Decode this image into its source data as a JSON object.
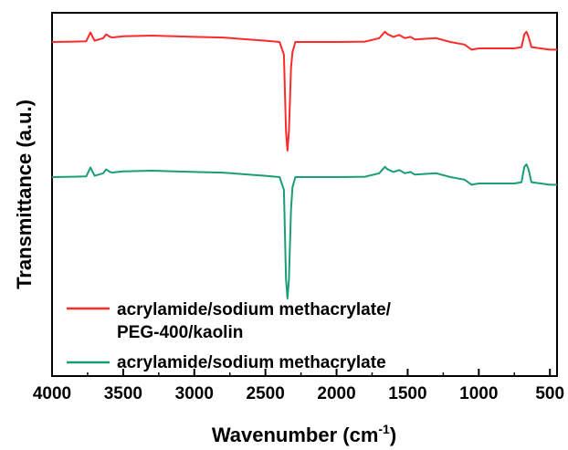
{
  "chart_data": {
    "type": "line",
    "xlabel": "Wavenumber (cm",
    "xlabel_sup": "-1",
    "xlabel_end": ")",
    "ylabel": "Transmittance (a.u.)",
    "xlim": [
      4000,
      450
    ],
    "x_reversed": true,
    "grid": false,
    "legend_placement": "bottom-left",
    "x_ticks": [
      4000,
      3500,
      3000,
      2500,
      2000,
      1500,
      1000,
      500
    ],
    "x_tick_labels": [
      "4000",
      "3500",
      "3000",
      "2500",
      "2000",
      "1500",
      "1000",
      "500"
    ],
    "series": [
      {
        "name_lines": [
          "acrylamide/sodium methacrylate/",
          "PEG-400/kaolin"
        ],
        "color": "#ff2a2a",
        "points": [
          [
            4000,
            0.0
          ],
          [
            3850,
            0.003
          ],
          [
            3760,
            0.006
          ],
          [
            3745,
            0.04
          ],
          [
            3730,
            0.075
          ],
          [
            3715,
            0.04
          ],
          [
            3700,
            0.01
          ],
          [
            3670,
            0.02
          ],
          [
            3640,
            0.03
          ],
          [
            3620,
            0.06
          ],
          [
            3600,
            0.045
          ],
          [
            3580,
            0.035
          ],
          [
            3500,
            0.045
          ],
          [
            3300,
            0.05
          ],
          [
            3000,
            0.04
          ],
          [
            2800,
            0.035
          ],
          [
            2500,
            0.01
          ],
          [
            2400,
            0.0
          ],
          [
            2370,
            -0.1
          ],
          [
            2355,
            -0.7
          ],
          [
            2345,
            -0.85
          ],
          [
            2335,
            -0.7
          ],
          [
            2320,
            -0.2
          ],
          [
            2310,
            -0.08
          ],
          [
            2290,
            0.0
          ],
          [
            2200,
            0.0
          ],
          [
            2000,
            0.0
          ],
          [
            1800,
            0.003
          ],
          [
            1700,
            0.03
          ],
          [
            1660,
            0.08
          ],
          [
            1640,
            0.06
          ],
          [
            1600,
            0.04
          ],
          [
            1560,
            0.055
          ],
          [
            1520,
            0.03
          ],
          [
            1480,
            0.04
          ],
          [
            1450,
            0.02
          ],
          [
            1300,
            0.03
          ],
          [
            1200,
            0.0
          ],
          [
            1100,
            -0.02
          ],
          [
            1050,
            -0.06
          ],
          [
            1000,
            -0.05
          ],
          [
            900,
            -0.05
          ],
          [
            750,
            -0.05
          ],
          [
            700,
            -0.04
          ],
          [
            680,
            0.06
          ],
          [
            665,
            0.08
          ],
          [
            650,
            0.04
          ],
          [
            630,
            -0.04
          ],
          [
            500,
            -0.06
          ],
          [
            450,
            -0.06
          ]
        ]
      },
      {
        "name": "acrylamide/sodium methacrylate",
        "color": "#1a9e77",
        "points": [
          [
            4000,
            0.0
          ],
          [
            3850,
            0.003
          ],
          [
            3760,
            0.006
          ],
          [
            3745,
            0.04
          ],
          [
            3730,
            0.075
          ],
          [
            3715,
            0.04
          ],
          [
            3700,
            0.01
          ],
          [
            3670,
            0.02
          ],
          [
            3640,
            0.03
          ],
          [
            3620,
            0.06
          ],
          [
            3600,
            0.045
          ],
          [
            3580,
            0.035
          ],
          [
            3500,
            0.045
          ],
          [
            3300,
            0.05
          ],
          [
            3000,
            0.04
          ],
          [
            2800,
            0.035
          ],
          [
            2500,
            0.01
          ],
          [
            2400,
            0.0
          ],
          [
            2370,
            -0.1
          ],
          [
            2355,
            -0.8
          ],
          [
            2345,
            -0.95
          ],
          [
            2335,
            -0.8
          ],
          [
            2320,
            -0.25
          ],
          [
            2310,
            -0.08
          ],
          [
            2290,
            0.0
          ],
          [
            2200,
            0.0
          ],
          [
            2000,
            0.0
          ],
          [
            1800,
            0.003
          ],
          [
            1700,
            0.03
          ],
          [
            1660,
            0.08
          ],
          [
            1640,
            0.06
          ],
          [
            1600,
            0.04
          ],
          [
            1560,
            0.055
          ],
          [
            1520,
            0.03
          ],
          [
            1480,
            0.04
          ],
          [
            1450,
            0.02
          ],
          [
            1300,
            0.03
          ],
          [
            1200,
            0.0
          ],
          [
            1100,
            -0.02
          ],
          [
            1050,
            -0.06
          ],
          [
            1000,
            -0.05
          ],
          [
            900,
            -0.05
          ],
          [
            750,
            -0.05
          ],
          [
            700,
            -0.04
          ],
          [
            680,
            0.08
          ],
          [
            665,
            0.1
          ],
          [
            650,
            0.06
          ],
          [
            630,
            -0.04
          ],
          [
            500,
            -0.06
          ],
          [
            450,
            -0.06
          ]
        ]
      }
    ]
  }
}
